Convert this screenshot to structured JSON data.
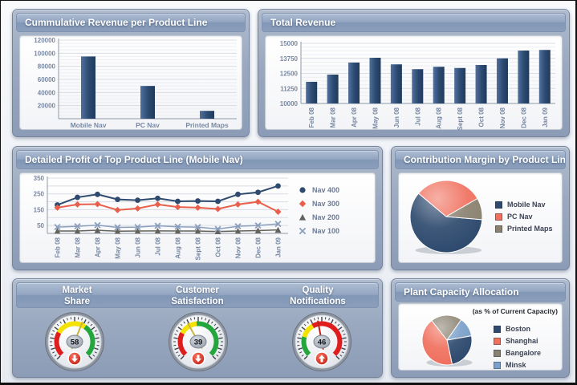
{
  "colors": {
    "navy": "#2e4a6e",
    "salmon": "#f0705e",
    "taupe": "#8a8170",
    "steel": "#7ba0c9",
    "bar_light": "#50709c",
    "bar_dark": "#1f3a5c",
    "grid": "#d9dde4",
    "grid_minor": "#ecEEf3",
    "axis": "#8f99a8",
    "tick_text": "#7888a3",
    "gauge_red": "#e01d1d",
    "gauge_yellow": "#f3e204",
    "gauge_green": "#23a73c"
  },
  "chart_data": [
    {
      "id": "cumulative_revenue",
      "type": "bar",
      "title": "Cummulative Revenue per Product Line",
      "categories": [
        "Mobile Nav",
        "PC Nav",
        "Printed Maps"
      ],
      "values": [
        95000,
        50000,
        12000
      ],
      "ylim": [
        0,
        120000
      ],
      "yticks": [
        20000,
        40000,
        60000,
        80000,
        100000,
        120000
      ],
      "minor_step": 5000,
      "rotate_x_labels": false,
      "grid": "on"
    },
    {
      "id": "total_revenue",
      "type": "bar",
      "title": "Total Revenue",
      "categories": [
        "Feb 08",
        "Mar 08",
        "Apr 08",
        "May 08",
        "Jun 08",
        "Jul 08",
        "Aug 08",
        "Sept 08",
        "Oct 08",
        "Nov 08",
        "Dec 08",
        "Jan 09"
      ],
      "values": [
        11800,
        12400,
        13400,
        13800,
        13250,
        12850,
        13050,
        12950,
        13200,
        13750,
        14400,
        14450
      ],
      "ylim": [
        10000,
        15000
      ],
      "yticks": [
        10000,
        11250,
        12500,
        13750,
        15000
      ],
      "minor_step": 312.5,
      "rotate_x_labels": true,
      "grid": "on"
    },
    {
      "id": "detailed_profit",
      "type": "line",
      "title": "Detailed Profit of Top Product Line (Mobile Nav)",
      "categories": [
        "Feb 08",
        "Mar 08",
        "Apr 08",
        "May 08",
        "Jun 08",
        "Jul 08",
        "Aug 08",
        "Sept 08",
        "Oct 08",
        "Nov 08",
        "Dec 08",
        "Jan 09"
      ],
      "ylim": [
        0,
        350
      ],
      "yticks": [
        50,
        150,
        250,
        350
      ],
      "grid_step": 50,
      "legend_position": "right",
      "series": [
        {
          "name": "Nav 400",
          "marker": "circle",
          "color": "#2e4a6e",
          "line_width": 2,
          "values": [
            180,
            228,
            247,
            215,
            210,
            222,
            203,
            205,
            203,
            247,
            260,
            300
          ]
        },
        {
          "name": "Nav 300",
          "marker": "diamond",
          "color": "#e8604c",
          "line_width": 2,
          "values": [
            163,
            183,
            185,
            148,
            158,
            183,
            167,
            163,
            155,
            183,
            200,
            137
          ]
        },
        {
          "name": "Nav 200",
          "marker": "triangle",
          "color": "#63625c",
          "line_width": 1.5,
          "values": [
            15,
            15,
            20,
            14,
            15,
            16,
            15,
            15,
            12,
            15,
            18,
            22
          ]
        },
        {
          "name": "Nav 100",
          "marker": "x",
          "color": "#8b9fbd",
          "line_width": 1.5,
          "values": [
            40,
            45,
            52,
            38,
            40,
            48,
            42,
            40,
            28,
            45,
            50,
            60
          ]
        }
      ]
    },
    {
      "id": "contribution_margin",
      "type": "pie",
      "title": "Contribution Margin by Product Line",
      "slices": [
        {
          "label": "Mobile Nav",
          "pct": 60,
          "start_deg": 95,
          "end_deg": 310,
          "color": "#2e4a6e"
        },
        {
          "label": "PC Nav",
          "pct": 31,
          "start_deg": 310,
          "end_deg": 420,
          "color": "#f0705e"
        },
        {
          "label": "Printed Maps",
          "pct": 9,
          "start_deg": 60,
          "end_deg": 95,
          "color": "#8a8170"
        }
      ],
      "legend_position": "right"
    },
    {
      "id": "plant_capacity",
      "type": "pie",
      "title": "Plant Capacity Allocation",
      "subtitle": "(as % of Current Capacity)",
      "slices": [
        {
          "label": "Boston",
          "pct": 24,
          "start_deg": 80,
          "end_deg": 168,
          "color": "#2e4a6e"
        },
        {
          "label": "Shanghai",
          "pct": 43,
          "start_deg": 168,
          "end_deg": 322,
          "color": "#f0705e"
        },
        {
          "label": "Bangalore",
          "pct": 20,
          "start_deg": 322,
          "end_deg": 395,
          "color": "#8a8170"
        },
        {
          "label": "Minsk",
          "pct": 13,
          "start_deg": 35,
          "end_deg": 80,
          "color": "#7ba0c9"
        }
      ],
      "legend_position": "right"
    },
    {
      "id": "gauges",
      "type": "gauge",
      "items": [
        {
          "title_lines": [
            "Market",
            "Share"
          ],
          "value": 58,
          "min": 0,
          "max": 100,
          "arrow": "down",
          "needle_color": "#c9b53e",
          "zones": [
            {
              "color": "#e01d1d",
              "from": -135,
              "to": -60
            },
            {
              "color": "#f3e204",
              "from": -60,
              "to": 35
            },
            {
              "color": "#23a73c",
              "from": 35,
              "to": 135
            }
          ]
        },
        {
          "title_lines": [
            "Customer",
            "Satisfaction"
          ],
          "value": 39,
          "min": 0,
          "max": 100,
          "arrow": "down",
          "needle_color": "#c9b53e",
          "zones": [
            {
              "color": "#e01d1d",
              "from": -135,
              "to": -62
            },
            {
              "color": "#f3e204",
              "from": -62,
              "to": -5
            },
            {
              "color": "#23a73c",
              "from": -5,
              "to": 135
            }
          ]
        },
        {
          "title_lines": [
            "Quality",
            "Notifications"
          ],
          "value": 46,
          "min": 0,
          "max": 100,
          "arrow": "up",
          "needle_color": "#c22017",
          "zones": [
            {
              "color": "#23a73c",
              "from": -135,
              "to": -75
            },
            {
              "color": "#f3e204",
              "from": -75,
              "to": -30
            },
            {
              "color": "#e01d1d",
              "from": -30,
              "to": 135
            }
          ]
        }
      ]
    }
  ]
}
